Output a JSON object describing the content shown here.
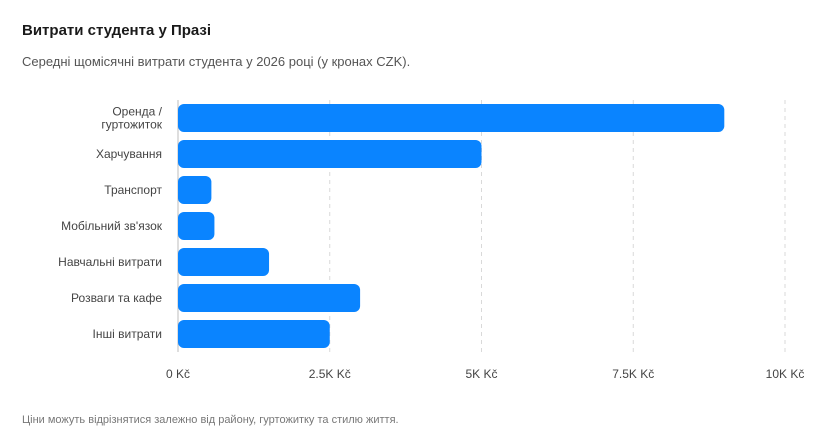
{
  "header": {
    "title": "Витрати студента у Празі",
    "subtitle": "Середні щомісячні витрати студента у 2026 році (у кронах CZK)."
  },
  "footer": {
    "note": "Ціни можуть відрізнятися залежно від району, гуртожитку та стилю життя."
  },
  "colors": {
    "bar": "#0a84ff"
  },
  "chart_data": {
    "type": "bar",
    "orientation": "horizontal",
    "title": "Витрати студента у Празі",
    "subtitle": "Середні щомісячні витрати студента у 2026 році (у кронах CZK).",
    "categories": [
      [
        "Оренда /",
        "гуртожиток"
      ],
      [
        "Харчування"
      ],
      [
        "Транспорт"
      ],
      [
        "Мобільний зв'язок"
      ],
      [
        "Навчальні витрати"
      ],
      [
        "Розваги та кафе"
      ],
      [
        "Інші витрати"
      ]
    ],
    "values": [
      9000,
      5000,
      550,
      600,
      1500,
      3000,
      2500
    ],
    "xlim": [
      0,
      10000
    ],
    "ticks": [
      0,
      2500,
      5000,
      7500,
      10000
    ],
    "tick_labels": [
      "0 Kč",
      "2.5K Kč",
      "5K Kč",
      "7.5K Kč",
      "10K Kč"
    ],
    "grid": "vertical dashed"
  }
}
